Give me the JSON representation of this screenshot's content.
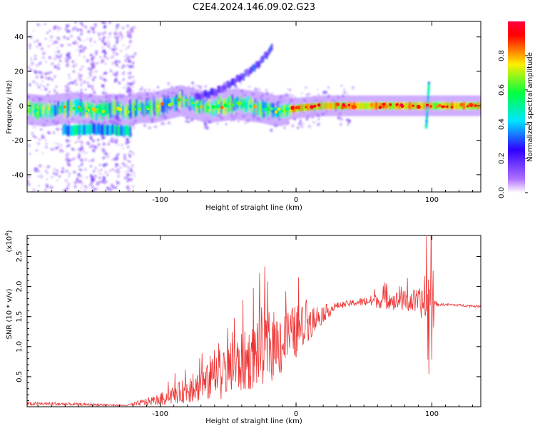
{
  "page": {
    "title": "C2E4.2024.146.09.02.G23"
  },
  "chart_data": [
    {
      "type": "heatmap",
      "xlabel": "Height of straight line (km)",
      "ylabel": "Frequency (Hz)",
      "xlim": [
        -198,
        136
      ],
      "ylim": [
        -50,
        49
      ],
      "xticks": [
        "-100",
        "0",
        "100"
      ],
      "yticks": [
        "40",
        "20",
        "0",
        "-20",
        "-40"
      ],
      "colorbar": {
        "label": "Normalized spectral amplitude",
        "ticks": [
          "0.0",
          "0.2",
          "0.4",
          "0.6",
          "0.8"
        ],
        "range": [
          0,
          1
        ],
        "colors": [
          "#ffffff",
          "#b070ff",
          "#3000ff",
          "#00e6ff",
          "#00ff40",
          "#ffee00",
          "#ff0000"
        ]
      },
      "carrier_track": [
        {
          "x": -198,
          "y": -2
        },
        {
          "x": -185,
          "y": -3
        },
        {
          "x": -175,
          "y": -2
        },
        {
          "x": -165,
          "y": -1
        },
        {
          "x": -155,
          "y": -2
        },
        {
          "x": -145,
          "y": -3
        },
        {
          "x": -135,
          "y": -2
        },
        {
          "x": -125,
          "y": -3
        },
        {
          "x": -115,
          "y": -1
        },
        {
          "x": -105,
          "y": -1
        },
        {
          "x": -95,
          "y": 1
        },
        {
          "x": -85,
          "y": 3
        },
        {
          "x": -75,
          "y": 1
        },
        {
          "x": -65,
          "y": -1
        },
        {
          "x": -55,
          "y": 0
        },
        {
          "x": -45,
          "y": 1
        },
        {
          "x": -35,
          "y": 0
        },
        {
          "x": -25,
          "y": -1
        },
        {
          "x": -15,
          "y": -3
        },
        {
          "x": -5,
          "y": -2
        },
        {
          "x": 5,
          "y": -1
        },
        {
          "x": 20,
          "y": 0
        },
        {
          "x": 40,
          "y": 0
        },
        {
          "x": 60,
          "y": 0
        },
        {
          "x": 80,
          "y": 0
        },
        {
          "x": 95,
          "y": 0
        },
        {
          "x": 110,
          "y": 0
        },
        {
          "x": 136,
          "y": 0
        }
      ],
      "lower_track": [
        {
          "x": -172,
          "y": -14
        },
        {
          "x": -160,
          "y": -14
        },
        {
          "x": -150,
          "y": -13
        },
        {
          "x": -140,
          "y": -14
        },
        {
          "x": -130,
          "y": -14
        },
        {
          "x": -122,
          "y": -15
        }
      ],
      "upper_track": [
        {
          "x": -75,
          "y": 5
        },
        {
          "x": -60,
          "y": 8
        },
        {
          "x": -48,
          "y": 13
        },
        {
          "x": -38,
          "y": 18
        },
        {
          "x": -30,
          "y": 23
        },
        {
          "x": -22,
          "y": 30
        },
        {
          "x": -18,
          "y": 34
        }
      ],
      "spike_x": 96
    },
    {
      "type": "line",
      "xlabel": "Height of straight line (km)",
      "ylabel": "SNR (10 * v/v)",
      "scale_label": "(x10",
      "scale_exponent": "4",
      "xlim": [
        -198,
        136
      ],
      "ylim": [
        0,
        2.85
      ],
      "xticks": [
        "-100",
        "0",
        "100"
      ],
      "yticks": [
        "0.5",
        "1.0",
        "1.5",
        "2.0",
        "2.5"
      ],
      "line_color": "#ee3333",
      "series": [
        {
          "x": [
            -198,
            -180,
            -160,
            -140,
            -125,
            -115,
            -100,
            -90,
            -80,
            -70,
            -60,
            -50,
            -40,
            -30,
            -20,
            -10,
            0,
            10,
            20,
            30,
            40,
            50,
            60,
            70,
            80,
            90,
            95,
            98,
            100,
            102,
            105,
            110,
            120,
            136
          ],
          "values": [
            0.05,
            0.05,
            0.04,
            0.03,
            0.02,
            0.06,
            0.12,
            0.2,
            0.28,
            0.35,
            0.45,
            0.6,
            0.72,
            0.85,
            1.0,
            1.05,
            1.25,
            1.4,
            1.55,
            1.68,
            1.72,
            1.75,
            1.76,
            1.76,
            1.76,
            1.74,
            1.7,
            1.5,
            1.6,
            1.72,
            1.7,
            1.7,
            1.69,
            1.67
          ],
          "noise": [
            0.03,
            0.03,
            0.02,
            0.02,
            0.01,
            0.05,
            0.1,
            0.15,
            0.22,
            0.28,
            0.35,
            0.45,
            0.5,
            0.55,
            0.6,
            0.55,
            0.45,
            0.3,
            0.15,
            0.06,
            0.05,
            0.08,
            0.12,
            0.15,
            0.18,
            0.22,
            0.3,
            1.2,
            0.9,
            0.05,
            0.02,
            0.02,
            0.02,
            0.02
          ]
        }
      ]
    }
  ]
}
